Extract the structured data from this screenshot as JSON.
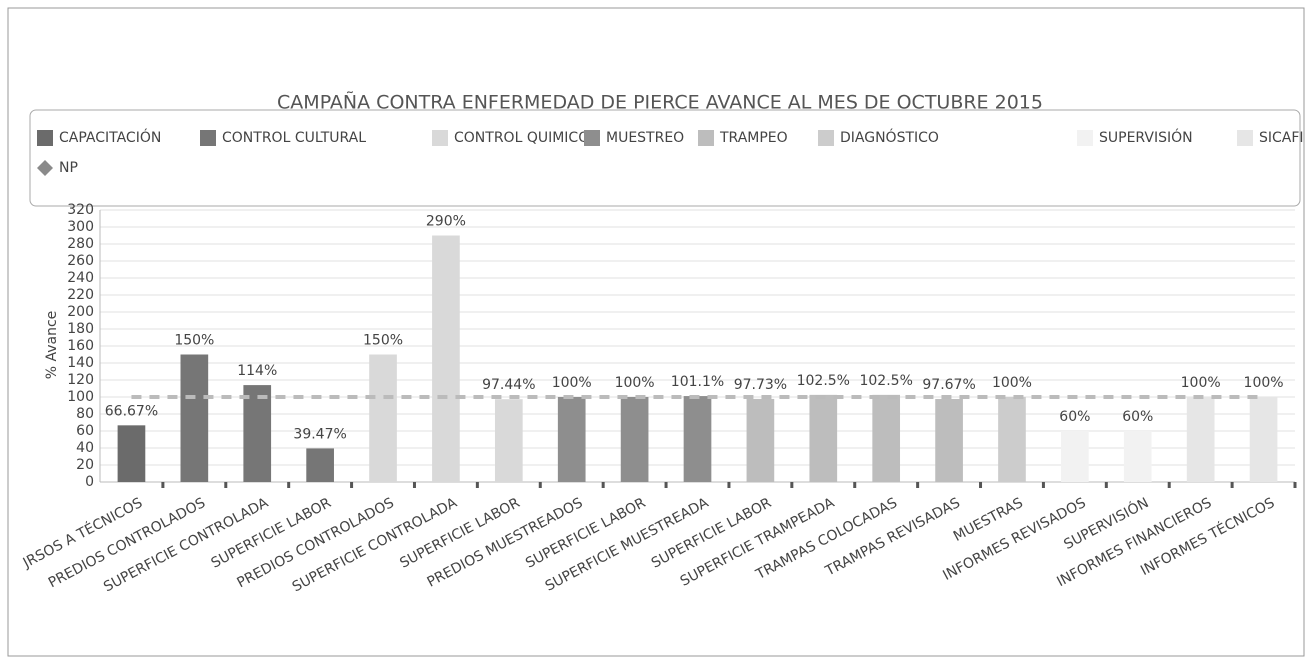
{
  "chart_data": {
    "type": "bar",
    "title": "CAMPAÑA CONTRA ENFERMEDAD DE PIERCE AVANCE AL MES DE OCTUBRE 2015",
    "y_label": "% Avance",
    "categories": [
      "JRSOS A TÉCNICOS",
      "PREDIOS CONTROLADOS",
      "SUPERFICIE CONTROLADA",
      "SUPERFICIE LABOR",
      "PREDIOS CONTROLADOS",
      "SUPERFICIE CONTROLADA",
      "SUPERFICIE LABOR",
      "PREDIOS MUESTREADOS",
      "SUPERFICIE LABOR",
      "SUPERFICIE MUESTREADA",
      "SUPERFICIE LABOR",
      "SUPERFICIE TRAMPEADA",
      "TRAMPAS COLOCADAS",
      "TRAMPAS REVISADAS",
      "MUESTRAS",
      "INFORMES REVISADOS",
      "SUPERVISIÓN",
      "INFORMES FINANCIEROS",
      "INFORMES TÉCNICOS"
    ],
    "ylim": [
      0,
      320
    ],
    "yticks": [
      0,
      20,
      40,
      60,
      80,
      100,
      120,
      140,
      160,
      180,
      200,
      220,
      240,
      260,
      280,
      300,
      320
    ],
    "grid": true,
    "series": [
      {
        "name": "CAPACITACIÓN",
        "color": "#6b6b6b",
        "values": [
          66.67,
          null,
          null,
          null,
          null,
          null,
          null,
          null,
          null,
          null,
          null,
          null,
          null,
          null,
          null,
          null,
          null,
          null,
          null
        ],
        "value_labels": [
          "66.67%",
          null,
          null,
          null,
          null,
          null,
          null,
          null,
          null,
          null,
          null,
          null,
          null,
          null,
          null,
          null,
          null,
          null,
          null
        ]
      },
      {
        "name": "CONTROL CULTURAL",
        "color": "#767676",
        "values": [
          null,
          150,
          114,
          39.47,
          null,
          null,
          null,
          null,
          null,
          null,
          null,
          null,
          null,
          null,
          null,
          null,
          null,
          null,
          null
        ],
        "value_labels": [
          null,
          "150%",
          "114%",
          "39.47%",
          null,
          null,
          null,
          null,
          null,
          null,
          null,
          null,
          null,
          null,
          null,
          null,
          null,
          null,
          null
        ]
      },
      {
        "name": "CONTROL QUIMICO",
        "color": "#d9d9d9",
        "values": [
          null,
          null,
          null,
          null,
          150,
          290,
          97.44,
          null,
          null,
          null,
          null,
          null,
          null,
          null,
          null,
          null,
          null,
          null,
          null
        ],
        "value_labels": [
          null,
          null,
          null,
          null,
          "150%",
          "290%",
          "97.44%",
          null,
          null,
          null,
          null,
          null,
          null,
          null,
          null,
          null,
          null,
          null,
          null
        ]
      },
      {
        "name": "MUESTREO",
        "color": "#8e8e8e",
        "values": [
          null,
          null,
          null,
          null,
          null,
          null,
          null,
          100,
          100,
          101.1,
          null,
          null,
          null,
          null,
          null,
          null,
          null,
          null,
          null
        ],
        "value_labels": [
          null,
          null,
          null,
          null,
          null,
          null,
          null,
          "100%",
          "100%",
          "101.1%",
          null,
          null,
          null,
          null,
          null,
          null,
          null,
          null,
          null
        ]
      },
      {
        "name": "TRAMPEO",
        "color": "#bdbdbd",
        "values": [
          null,
          null,
          null,
          null,
          null,
          null,
          null,
          null,
          null,
          null,
          97.73,
          102.5,
          102.5,
          97.67,
          null,
          null,
          null,
          null,
          null
        ],
        "value_labels": [
          null,
          null,
          null,
          null,
          null,
          null,
          null,
          null,
          null,
          null,
          "97.73%",
          "102.5%",
          "102.5%",
          "97.67%",
          null,
          null,
          null,
          null,
          null
        ]
      },
      {
        "name": "DIAGNÓSTICO",
        "color": "#cccccc",
        "values": [
          null,
          null,
          null,
          null,
          null,
          null,
          null,
          null,
          null,
          null,
          null,
          null,
          null,
          null,
          100,
          null,
          null,
          null,
          null
        ],
        "value_labels": [
          null,
          null,
          null,
          null,
          null,
          null,
          null,
          null,
          null,
          null,
          null,
          null,
          null,
          null,
          "100%",
          null,
          null,
          null,
          null
        ]
      },
      {
        "name": "SUPERVISIÓN",
        "color": "#f2f2f2",
        "values": [
          null,
          null,
          null,
          null,
          null,
          null,
          null,
          null,
          null,
          null,
          null,
          null,
          null,
          null,
          null,
          60,
          60,
          null,
          null
        ],
        "value_labels": [
          null,
          null,
          null,
          null,
          null,
          null,
          null,
          null,
          null,
          null,
          null,
          null,
          null,
          null,
          null,
          "60%",
          "60%",
          null,
          null
        ]
      },
      {
        "name": "SICAFI",
        "color": "#e6e6e6",
        "values": [
          null,
          null,
          null,
          null,
          null,
          null,
          null,
          null,
          null,
          null,
          null,
          null,
          null,
          null,
          null,
          null,
          null,
          100,
          100
        ],
        "value_labels": [
          null,
          null,
          null,
          null,
          null,
          null,
          null,
          null,
          null,
          null,
          null,
          null,
          null,
          null,
          null,
          null,
          null,
          "100%",
          "100%"
        ]
      },
      {
        "name": "NP",
        "color": "#8a8a8a",
        "type": "line",
        "values": [
          100,
          100,
          100,
          100,
          100,
          100,
          100,
          100,
          100,
          100,
          100,
          100,
          100,
          100,
          100,
          100,
          100,
          100,
          100
        ]
      }
    ]
  }
}
